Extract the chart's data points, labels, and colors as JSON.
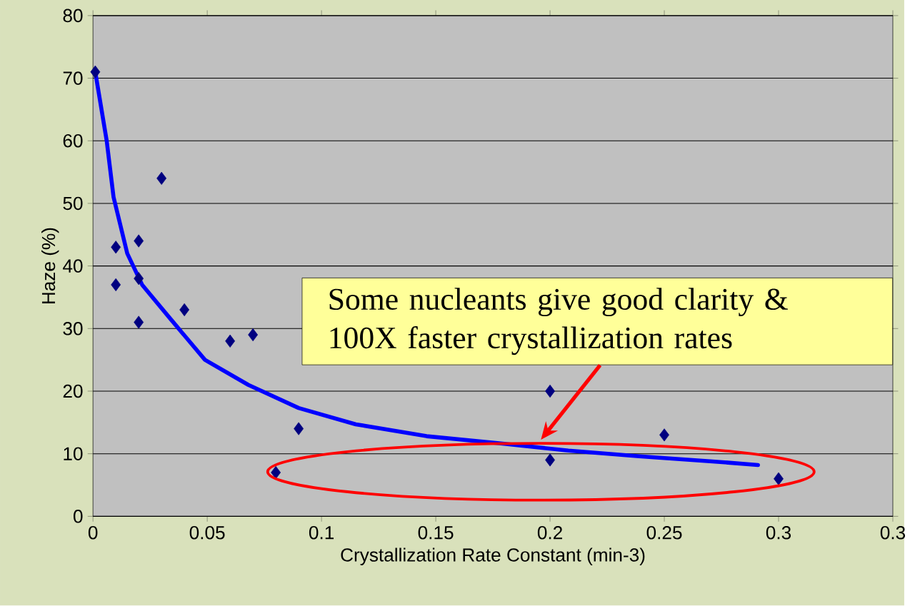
{
  "chart_data": {
    "type": "scatter",
    "xlabel": "Crystallization Rate Constant (min-3)",
    "ylabel": "Haze (%)",
    "xlim": [
      0,
      0.35
    ],
    "ylim": [
      0,
      80
    ],
    "xticks": [
      0,
      0.05,
      0.1,
      0.15,
      0.2,
      0.25,
      0.3,
      {
        "value": 0.35,
        "label": "0.3"
      }
    ],
    "yticks": [
      0,
      10,
      20,
      30,
      40,
      50,
      60,
      70,
      80
    ],
    "grid": "y",
    "series": [
      {
        "color": "#000080",
        "marker": "diamond",
        "x": [
          0.001,
          0.01,
          0.01,
          0.02,
          0.02,
          0.02,
          0.03,
          0.04,
          0.06,
          0.07,
          0.08,
          0.09,
          0.2,
          0.2,
          0.25,
          0.3
        ],
        "values": [
          71,
          43,
          37,
          44,
          38,
          31,
          54,
          33,
          28,
          29,
          7,
          14,
          20,
          9,
          13,
          6
        ]
      },
      {
        "type": "line",
        "color": "#0000ff",
        "marker": "none",
        "line_style": "solid",
        "x": [
          0.001,
          0.006,
          0.009,
          0.015,
          0.0215,
          0.034,
          0.049,
          0.068,
          0.09,
          0.115,
          0.146,
          0.177,
          0.208,
          0.239,
          0.27,
          0.291
        ],
        "values": [
          71,
          60,
          51,
          42,
          37,
          31.5,
          25,
          21,
          17.3,
          14.7,
          12.8,
          11.7,
          10.5,
          9.6,
          8.8,
          8.2
        ]
      }
    ],
    "annotations": [
      "Some nucleants give good clarity & 100X faster crystallization rates"
    ]
  }
}
